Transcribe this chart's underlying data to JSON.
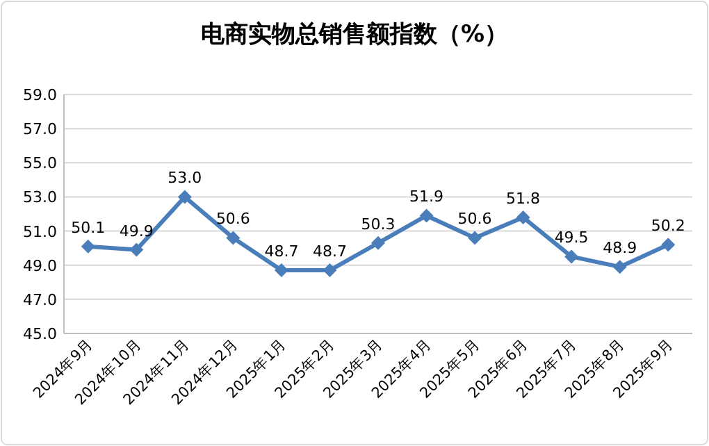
{
  "chart_data": {
    "type": "line",
    "title": "电商实物总销售额指数（%）",
    "categories": [
      "2024年9月",
      "2024年10月",
      "2024年11月",
      "2024年12月",
      "2025年1月",
      "2025年2月",
      "2025年3月",
      "2025年4月",
      "2025年5月",
      "2025年6月",
      "2025年7月",
      "2025年8月",
      "2025年9月"
    ],
    "values": [
      50.1,
      49.9,
      53.0,
      50.6,
      48.7,
      48.7,
      50.3,
      51.9,
      50.6,
      51.8,
      49.5,
      48.9,
      50.2
    ],
    "value_labels": [
      "50.1",
      "49.9",
      "53.0",
      "50.6",
      "48.7",
      "48.7",
      "50.3",
      "51.9",
      "50.6",
      "51.8",
      "49.5",
      "48.9",
      "50.2"
    ],
    "color": "#4a7ebb",
    "ylim": [
      45,
      59
    ],
    "yticks": [
      {
        "value": 45,
        "label": "45.0"
      },
      {
        "value": 47,
        "label": "47.0"
      },
      {
        "value": 49,
        "label": "49.0"
      },
      {
        "value": 51,
        "label": "51.0"
      },
      {
        "value": 53,
        "label": "53.0"
      },
      {
        "value": 55,
        "label": "55.0"
      },
      {
        "value": 57,
        "label": "57.0"
      },
      {
        "value": 59,
        "label": "59.0"
      }
    ],
    "grid": "y",
    "marker": "diamond",
    "line_style": "solid"
  }
}
